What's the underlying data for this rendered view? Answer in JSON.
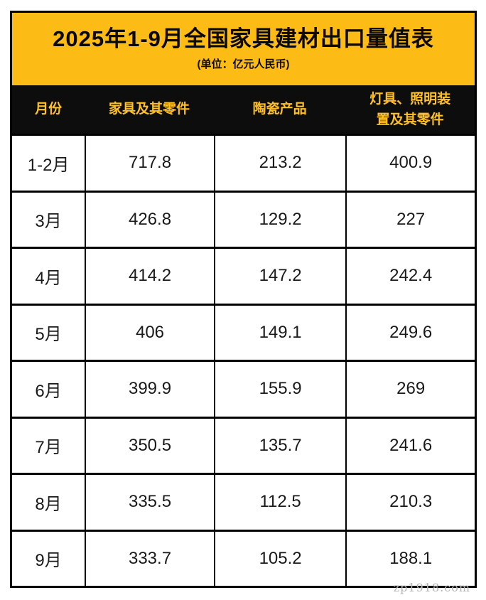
{
  "header": {
    "title": "2025年1-9月全国家具建材出口量值表",
    "subtitle": "(单位：亿元人民币)"
  },
  "colors": {
    "accent_yellow": "#fdbb16",
    "header_row_bg": "#0d0d0d",
    "header_row_text": "#ffc125",
    "border": "#000000",
    "watermark_gray": "#b5b5b5"
  },
  "table": {
    "columns": [
      "月份",
      "家具及其零件",
      "陶瓷产品",
      "灯具、照明装置及其零件"
    ],
    "rows": [
      {
        "month": "1-2月",
        "values": [
          "717.8",
          "213.2",
          "400.9"
        ]
      },
      {
        "month": "3月",
        "values": [
          "426.8",
          "129.2",
          "227"
        ]
      },
      {
        "month": "4月",
        "values": [
          "414.2",
          "147.2",
          "242.4"
        ]
      },
      {
        "month": "5月",
        "values": [
          "406",
          "149.1",
          "249.6"
        ]
      },
      {
        "month": "6月",
        "values": [
          "399.9",
          "155.9",
          "269"
        ]
      },
      {
        "month": "7月",
        "values": [
          "350.5",
          "135.7",
          "241.6"
        ]
      },
      {
        "month": "8月",
        "values": [
          "335.5",
          "112.5",
          "210.3"
        ]
      },
      {
        "month": "9月",
        "values": [
          "333.7",
          "105.2",
          "188.1"
        ]
      }
    ]
  },
  "watermark": "zp1918.com"
}
